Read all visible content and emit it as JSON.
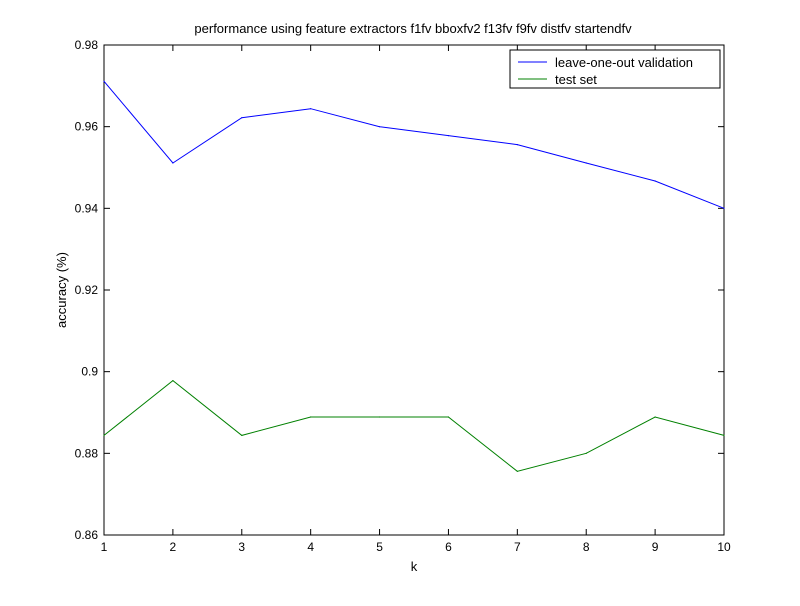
{
  "chart_data": {
    "type": "line",
    "title": "performance using feature extractors f1fv bboxfv2 f13fv f9fv distfv startendfv",
    "xlabel": "k",
    "ylabel": "accuracy (%)",
    "xlim": [
      1,
      10
    ],
    "ylim": [
      0.86,
      0.98
    ],
    "x_ticks": [
      "1",
      "2",
      "3",
      "4",
      "5",
      "6",
      "7",
      "8",
      "9",
      "10"
    ],
    "y_ticks": [
      "0.86",
      "0.88",
      "0.9",
      "0.92",
      "0.94",
      "0.96",
      "0.98"
    ],
    "x": [
      1,
      2,
      3,
      4,
      5,
      6,
      7,
      8,
      9,
      10
    ],
    "grid": false,
    "legend_position": "top-right",
    "series": [
      {
        "name": "leave-one-out validation",
        "color": "#0000ff",
        "values": [
          0.9711,
          0.9511,
          0.9622,
          0.9644,
          0.96,
          0.9578,
          0.9556,
          0.9511,
          0.9467,
          0.94
        ]
      },
      {
        "name": "test set",
        "color": "#008000",
        "values": [
          0.8844,
          0.8978,
          0.8844,
          0.8889,
          0.8889,
          0.8889,
          0.8756,
          0.88,
          0.8889,
          0.8844
        ]
      }
    ]
  }
}
